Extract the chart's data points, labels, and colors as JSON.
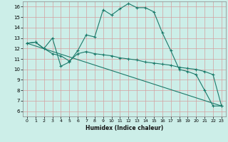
{
  "xlabel": "Humidex (Indice chaleur)",
  "bg_color": "#cceee8",
  "grid_color": "#d4a0a0",
  "line_color": "#1a7a6a",
  "xlim": [
    -0.5,
    23.5
  ],
  "ylim": [
    5.5,
    16.5
  ],
  "yticks": [
    6,
    7,
    8,
    9,
    10,
    11,
    12,
    13,
    14,
    15,
    16
  ],
  "xticks": [
    0,
    1,
    2,
    3,
    4,
    5,
    6,
    7,
    8,
    9,
    10,
    11,
    12,
    13,
    14,
    15,
    16,
    17,
    18,
    19,
    20,
    21,
    22,
    23
  ],
  "line1_x": [
    0,
    1,
    2,
    3,
    4,
    5,
    6,
    7,
    8,
    9,
    10,
    11,
    12,
    13,
    14,
    15,
    16,
    17,
    18,
    19,
    20,
    21,
    22,
    23
  ],
  "line1_y": [
    12.5,
    12.6,
    12.0,
    13.0,
    10.3,
    10.7,
    11.8,
    13.3,
    13.1,
    15.7,
    15.2,
    15.8,
    16.3,
    15.9,
    15.9,
    15.5,
    13.5,
    11.8,
    10.0,
    9.8,
    9.5,
    8.0,
    6.5,
    6.5
  ],
  "line2_x": [
    0,
    1,
    2,
    3,
    4,
    5,
    6,
    7,
    8,
    9,
    10,
    11,
    12,
    13,
    14,
    15,
    16,
    17,
    18,
    19,
    20,
    21,
    22,
    23
  ],
  "line2_y": [
    12.5,
    12.6,
    12.0,
    11.5,
    11.3,
    10.8,
    11.5,
    11.7,
    11.5,
    11.4,
    11.3,
    11.1,
    11.0,
    10.9,
    10.7,
    10.6,
    10.5,
    10.4,
    10.2,
    10.1,
    10.0,
    9.8,
    9.5,
    6.5
  ],
  "line3_x": [
    0,
    23
  ],
  "line3_y": [
    12.5,
    6.5
  ]
}
